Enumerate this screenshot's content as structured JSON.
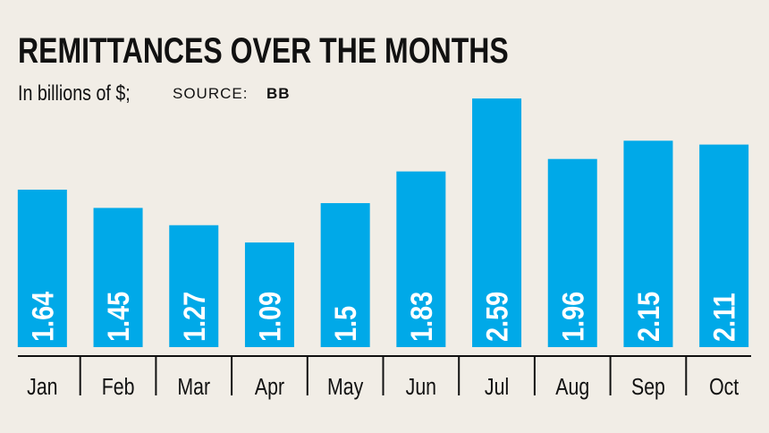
{
  "chart_data": {
    "type": "bar",
    "title": "REMITTANCES OVER THE MONTHS",
    "subtitle": "In billions of $;",
    "source_label": "SOURCE:",
    "source": "BB",
    "categories": [
      "Jan",
      "Feb",
      "Mar",
      "Apr",
      "May",
      "Jun",
      "Jul",
      "Aug",
      "Sep",
      "Oct"
    ],
    "values": [
      1.64,
      1.45,
      1.27,
      1.09,
      1.5,
      1.83,
      2.59,
      1.96,
      2.15,
      2.11
    ],
    "color": "#00a9e8"
  }
}
